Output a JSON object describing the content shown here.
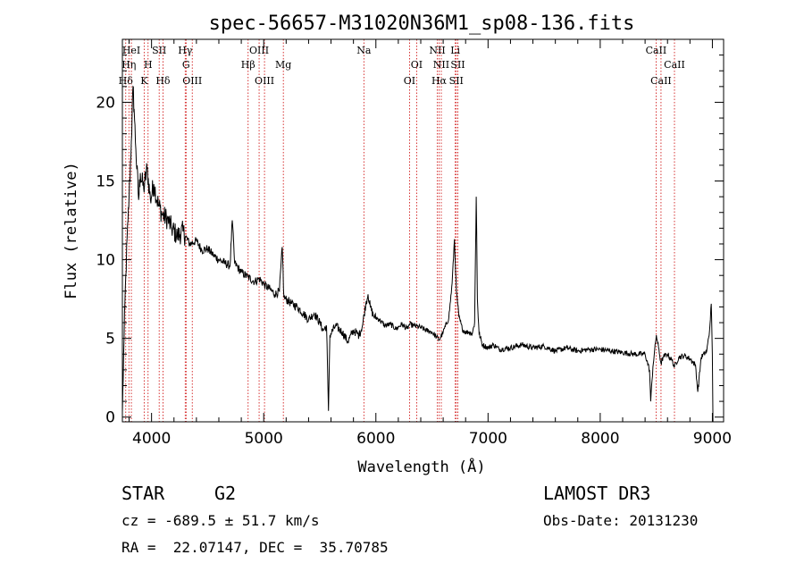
{
  "chart_data": {
    "type": "line",
    "title": "spec-56657-M31020N36M1_sp08-136.fits",
    "xlabel": "Wavelength (Å)",
    "ylabel": "Flux (relative)",
    "xlim": [
      3740,
      9100
    ],
    "ylim": [
      -0.3,
      24.0
    ],
    "xticks": [
      4000,
      5000,
      6000,
      7000,
      8000,
      9000
    ],
    "yticks": [
      0,
      5,
      10,
      15,
      20
    ],
    "spectrum_anchors": [
      [
        3740,
        0.3
      ],
      [
        3755,
        5.0
      ],
      [
        3770,
        9.0
      ],
      [
        3790,
        12.5
      ],
      [
        3800,
        14.0
      ],
      [
        3820,
        17.5
      ],
      [
        3835,
        21.0
      ],
      [
        3845,
        19.5
      ],
      [
        3860,
        17.0
      ],
      [
        3885,
        13.8
      ],
      [
        3900,
        15.5
      ],
      [
        3930,
        14.5
      ],
      [
        3960,
        15.8
      ],
      [
        3990,
        13.8
      ],
      [
        4020,
        14.8
      ],
      [
        4060,
        13.5
      ],
      [
        4100,
        12.8
      ],
      [
        4140,
        12.6
      ],
      [
        4180,
        12.0
      ],
      [
        4230,
        11.5
      ],
      [
        4280,
        11.8
      ],
      [
        4340,
        11.0
      ],
      [
        4400,
        11.2
      ],
      [
        4450,
        10.6
      ],
      [
        4500,
        10.7
      ],
      [
        4550,
        10.3
      ],
      [
        4600,
        10.0
      ],
      [
        4650,
        9.8
      ],
      [
        4700,
        9.6
      ],
      [
        4720,
        12.5
      ],
      [
        4740,
        9.8
      ],
      [
        4800,
        9.2
      ],
      [
        4860,
        8.9
      ],
      [
        4920,
        8.6
      ],
      [
        4960,
        8.8
      ],
      [
        5007,
        8.4
      ],
      [
        5060,
        8.1
      ],
      [
        5100,
        7.8
      ],
      [
        5140,
        8.0
      ],
      [
        5165,
        10.8
      ],
      [
        5180,
        7.6
      ],
      [
        5250,
        7.2
      ],
      [
        5300,
        7.0
      ],
      [
        5350,
        6.6
      ],
      [
        5400,
        6.2
      ],
      [
        5450,
        6.6
      ],
      [
        5500,
        6.0
      ],
      [
        5530,
        5.5
      ],
      [
        5560,
        5.8
      ],
      [
        5577,
        0.4
      ],
      [
        5590,
        5.2
      ],
      [
        5640,
        5.8
      ],
      [
        5700,
        5.4
      ],
      [
        5750,
        4.8
      ],
      [
        5800,
        5.5
      ],
      [
        5850,
        5.2
      ],
      [
        5880,
        5.8
      ],
      [
        5910,
        7.2
      ],
      [
        5930,
        7.8
      ],
      [
        5950,
        7.0
      ],
      [
        5980,
        6.4
      ],
      [
        6030,
        6.2
      ],
      [
        6080,
        5.8
      ],
      [
        6130,
        5.9
      ],
      [
        6180,
        5.6
      ],
      [
        6230,
        5.9
      ],
      [
        6280,
        5.6
      ],
      [
        6300,
        5.9
      ],
      [
        6340,
        5.8
      ],
      [
        6400,
        5.7
      ],
      [
        6450,
        5.5
      ],
      [
        6500,
        5.4
      ],
      [
        6540,
        5.1
      ],
      [
        6563,
        4.9
      ],
      [
        6600,
        5.4
      ],
      [
        6650,
        6.3
      ],
      [
        6680,
        8.5
      ],
      [
        6700,
        11.3
      ],
      [
        6718,
        8.0
      ],
      [
        6740,
        6.4
      ],
      [
        6770,
        5.6
      ],
      [
        6800,
        5.4
      ],
      [
        6830,
        5.4
      ],
      [
        6860,
        5.3
      ],
      [
        6880,
        6.0
      ],
      [
        6895,
        14.0
      ],
      [
        6905,
        7.5
      ],
      [
        6920,
        5.3
      ],
      [
        6950,
        4.6
      ],
      [
        7000,
        4.4
      ],
      [
        7050,
        4.6
      ],
      [
        7100,
        4.3
      ],
      [
        7200,
        4.4
      ],
      [
        7300,
        4.6
      ],
      [
        7400,
        4.4
      ],
      [
        7500,
        4.5
      ],
      [
        7600,
        4.2
      ],
      [
        7700,
        4.4
      ],
      [
        7800,
        4.2
      ],
      [
        7900,
        4.3
      ],
      [
        8000,
        4.3
      ],
      [
        8100,
        4.2
      ],
      [
        8200,
        4.1
      ],
      [
        8300,
        4.0
      ],
      [
        8400,
        4.0
      ],
      [
        8440,
        3.0
      ],
      [
        8450,
        1.0
      ],
      [
        8470,
        3.2
      ],
      [
        8500,
        5.2
      ],
      [
        8520,
        4.4
      ],
      [
        8542,
        3.4
      ],
      [
        8560,
        3.8
      ],
      [
        8600,
        4.0
      ],
      [
        8640,
        3.6
      ],
      [
        8662,
        3.2
      ],
      [
        8700,
        3.8
      ],
      [
        8750,
        3.9
      ],
      [
        8800,
        3.7
      ],
      [
        8850,
        3.3
      ],
      [
        8870,
        1.6
      ],
      [
        8900,
        3.8
      ],
      [
        8950,
        4.2
      ],
      [
        8975,
        5.5
      ],
      [
        8990,
        7.2
      ],
      [
        9000,
        4.0
      ],
      [
        9005,
        -0.3
      ]
    ],
    "emission_lines": [
      {
        "label": "Hδ",
        "wavelength": 3770,
        "row": 3
      },
      {
        "label": "Hη",
        "wavelength": 3798,
        "row": 2
      },
      {
        "label": "HeI",
        "wavelength": 3820,
        "row": 1
      },
      {
        "label": "K",
        "wavelength": 3934,
        "row": 3
      },
      {
        "label": "H",
        "wavelength": 3969,
        "row": 2
      },
      {
        "label": "SII",
        "wavelength": 4068,
        "row": 1
      },
      {
        "label": "Hδ",
        "wavelength": 4102,
        "row": 3
      },
      {
        "label": "Hγ",
        "wavelength": 4300,
        "row": 1
      },
      {
        "label": "G",
        "wavelength": 4308,
        "row": 2
      },
      {
        "label": "OIII",
        "wavelength": 4363,
        "row": 3
      },
      {
        "label": "Hβ",
        "wavelength": 4861,
        "row": 2
      },
      {
        "label": "OIII",
        "wavelength": 4959,
        "row": 1
      },
      {
        "label": "OIII",
        "wavelength": 5007,
        "row": 3
      },
      {
        "label": "Mg",
        "wavelength": 5175,
        "row": 2
      },
      {
        "label": "Na",
        "wavelength": 5893,
        "row": 1
      },
      {
        "label": "OI",
        "wavelength": 6300,
        "row": 3
      },
      {
        "label": "OI",
        "wavelength": 6364,
        "row": 2
      },
      {
        "label": "NII",
        "wavelength": 6548,
        "row": 1
      },
      {
        "label": "NII",
        "wavelength": 6583,
        "row": 2
      },
      {
        "label": "Hα",
        "wavelength": 6563,
        "row": 3
      },
      {
        "label": "SII",
        "wavelength": 6717,
        "row": 3
      },
      {
        "label": "SII",
        "wavelength": 6731,
        "row": 2
      },
      {
        "label": "Li",
        "wavelength": 6708,
        "row": 1
      },
      {
        "label": "CaII",
        "wavelength": 8498,
        "row": 1
      },
      {
        "label": "CaII",
        "wavelength": 8542,
        "row": 3
      },
      {
        "label": "CaII",
        "wavelength": 8662,
        "row": 2
      }
    ],
    "colors": {
      "spectrum": "#000000",
      "lines": "#cc0000"
    }
  },
  "info": {
    "object_type": "STAR",
    "subclass": "G2",
    "survey": "LAMOST DR3",
    "redshift": "cz = -689.5 ± 51.7 km/s",
    "obs_date": "Obs-Date: 20131230",
    "coords": "RA =  22.07147, DEC =  35.70785"
  }
}
